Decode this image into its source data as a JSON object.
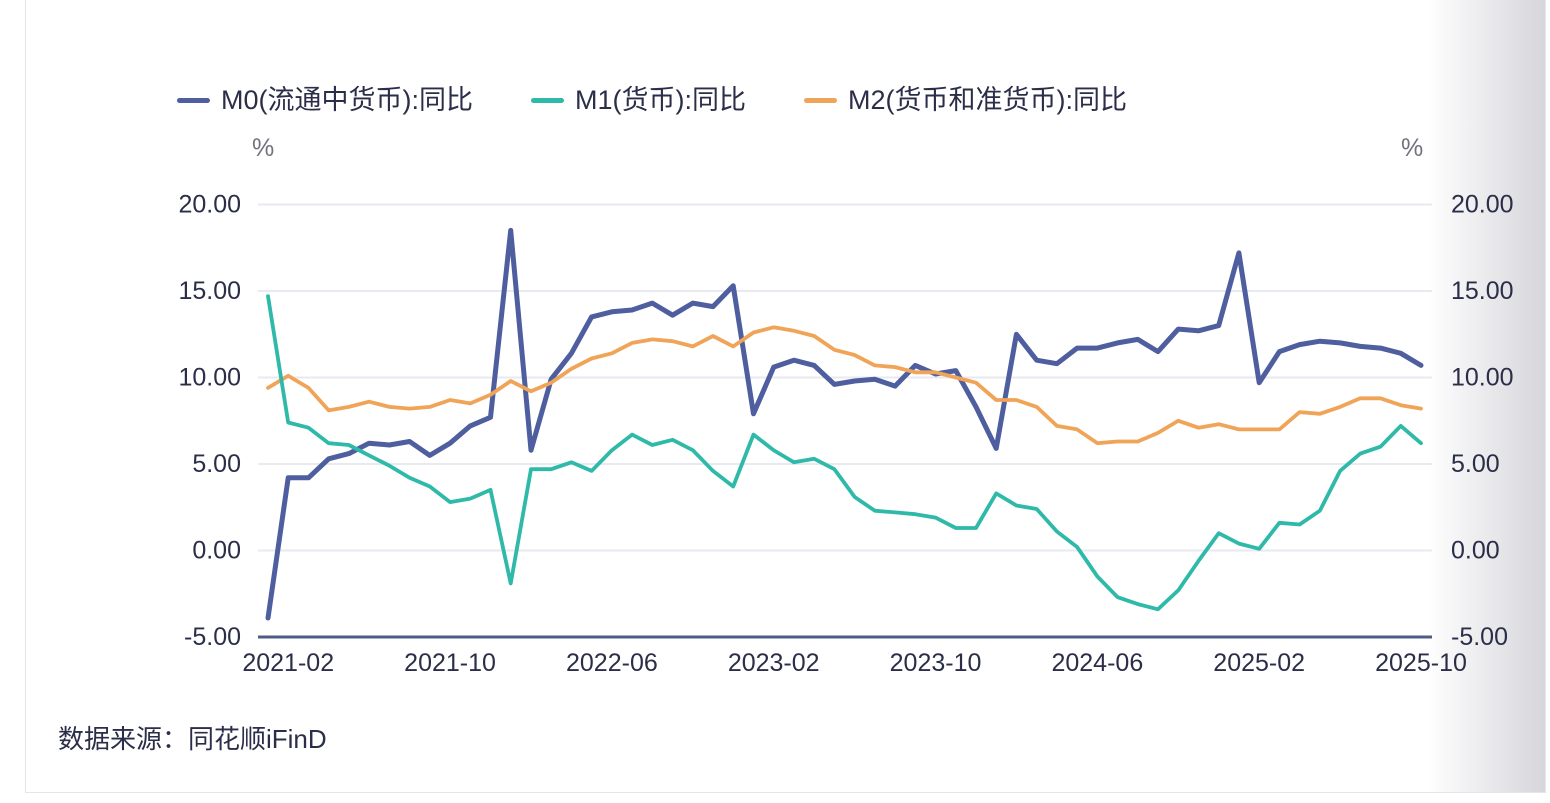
{
  "page": {
    "source_note": "数据来源：同花顺iFinD"
  },
  "colors": {
    "m0": "#4e5e9e",
    "m1": "#2fb9a9",
    "m2": "#f0a458",
    "text": "#2b2e48",
    "muted_text": "#72727f",
    "grid": "#e9e9f1",
    "axis_line": "#4d5c86",
    "card_border": "#e4e4ea"
  },
  "chart_data": {
    "type": "line",
    "title": "",
    "unit_label_left": "%",
    "unit_label_right": "%",
    "grid": true,
    "legend_position": "top",
    "ylim": [
      -5,
      20
    ],
    "y_ticks": [
      20,
      15,
      10,
      5,
      0,
      -5
    ],
    "y_tick_labels": [
      "20.00",
      "15.00",
      "10.00",
      "5.00",
      "0.00",
      "-5.00"
    ],
    "x": [
      "2021-01",
      "2021-02",
      "2021-03",
      "2021-04",
      "2021-05",
      "2021-06",
      "2021-07",
      "2021-08",
      "2021-09",
      "2021-10",
      "2021-11",
      "2021-12",
      "2022-01",
      "2022-02",
      "2022-03",
      "2022-04",
      "2022-05",
      "2022-06",
      "2022-07",
      "2022-08",
      "2022-09",
      "2022-10",
      "2022-11",
      "2022-12",
      "2023-01",
      "2023-02",
      "2023-03",
      "2023-04",
      "2023-05",
      "2023-06",
      "2023-07",
      "2023-08",
      "2023-09",
      "2023-10",
      "2023-11",
      "2023-12",
      "2024-01",
      "2024-02",
      "2024-03",
      "2024-04",
      "2024-05",
      "2024-06",
      "2024-07",
      "2024-08",
      "2024-09",
      "2024-10",
      "2024-11",
      "2024-12",
      "2025-01",
      "2025-02",
      "2025-03",
      "2025-04",
      "2025-05",
      "2025-06",
      "2025-07",
      "2025-08",
      "2025-09",
      "2025-10"
    ],
    "x_tick_indices": [
      1,
      9,
      17,
      25,
      33,
      41,
      49,
      57
    ],
    "x_tick_labels": [
      "2021-02",
      "2021-10",
      "2022-06",
      "2023-02",
      "2023-10",
      "2024-06",
      "2025-02",
      "2025-10"
    ],
    "series": [
      {
        "name": "M0(流通中货币):同比",
        "color": "#4e5e9e",
        "stroke_width": 5,
        "values": [
          -3.9,
          4.2,
          4.2,
          5.3,
          5.6,
          6.2,
          6.1,
          6.3,
          5.5,
          6.2,
          7.2,
          7.7,
          18.5,
          5.8,
          9.9,
          11.4,
          13.5,
          13.8,
          13.9,
          14.3,
          13.6,
          14.3,
          14.1,
          15.3,
          7.9,
          10.6,
          11.0,
          10.7,
          9.6,
          9.8,
          9.9,
          9.5,
          10.7,
          10.2,
          10.4,
          8.3,
          5.9,
          12.5,
          11.0,
          10.8,
          11.7,
          11.7,
          12.0,
          12.2,
          11.5,
          12.8,
          12.7,
          13.0,
          17.2,
          9.7,
          11.5,
          11.9,
          12.1,
          12.0,
          11.8,
          11.7,
          11.4,
          10.7
        ]
      },
      {
        "name": "M1(货币):同比",
        "color": "#2fb9a9",
        "stroke_width": 3.8,
        "values": [
          14.7,
          7.4,
          7.1,
          6.2,
          6.1,
          5.5,
          4.9,
          4.2,
          3.7,
          2.8,
          3.0,
          3.5,
          -1.9,
          4.7,
          4.7,
          5.1,
          4.6,
          5.8,
          6.7,
          6.1,
          6.4,
          5.8,
          4.6,
          3.7,
          6.7,
          5.8,
          5.1,
          5.3,
          4.7,
          3.1,
          2.3,
          2.2,
          2.1,
          1.9,
          1.3,
          1.3,
          3.3,
          2.6,
          2.4,
          1.1,
          0.2,
          -1.5,
          -2.7,
          -3.1,
          -3.4,
          -2.3,
          -0.6,
          1.0,
          0.4,
          0.1,
          1.6,
          1.5,
          2.3,
          4.6,
          5.6,
          6.0,
          7.2,
          6.2
        ]
      },
      {
        "name": "M2(货币和准货币):同比",
        "color": "#f0a458",
        "stroke_width": 3.8,
        "values": [
          9.4,
          10.1,
          9.4,
          8.1,
          8.3,
          8.6,
          8.3,
          8.2,
          8.3,
          8.7,
          8.5,
          9.0,
          9.8,
          9.2,
          9.7,
          10.5,
          11.1,
          11.4,
          12.0,
          12.2,
          12.1,
          11.8,
          12.4,
          11.8,
          12.6,
          12.9,
          12.7,
          12.4,
          11.6,
          11.3,
          10.7,
          10.6,
          10.3,
          10.3,
          10.0,
          9.7,
          8.7,
          8.7,
          8.3,
          7.2,
          7.0,
          6.2,
          6.3,
          6.3,
          6.8,
          7.5,
          7.1,
          7.3,
          7.0,
          7.0,
          7.0,
          8.0,
          7.9,
          8.3,
          8.8,
          8.8,
          8.4,
          8.2
        ]
      }
    ]
  }
}
